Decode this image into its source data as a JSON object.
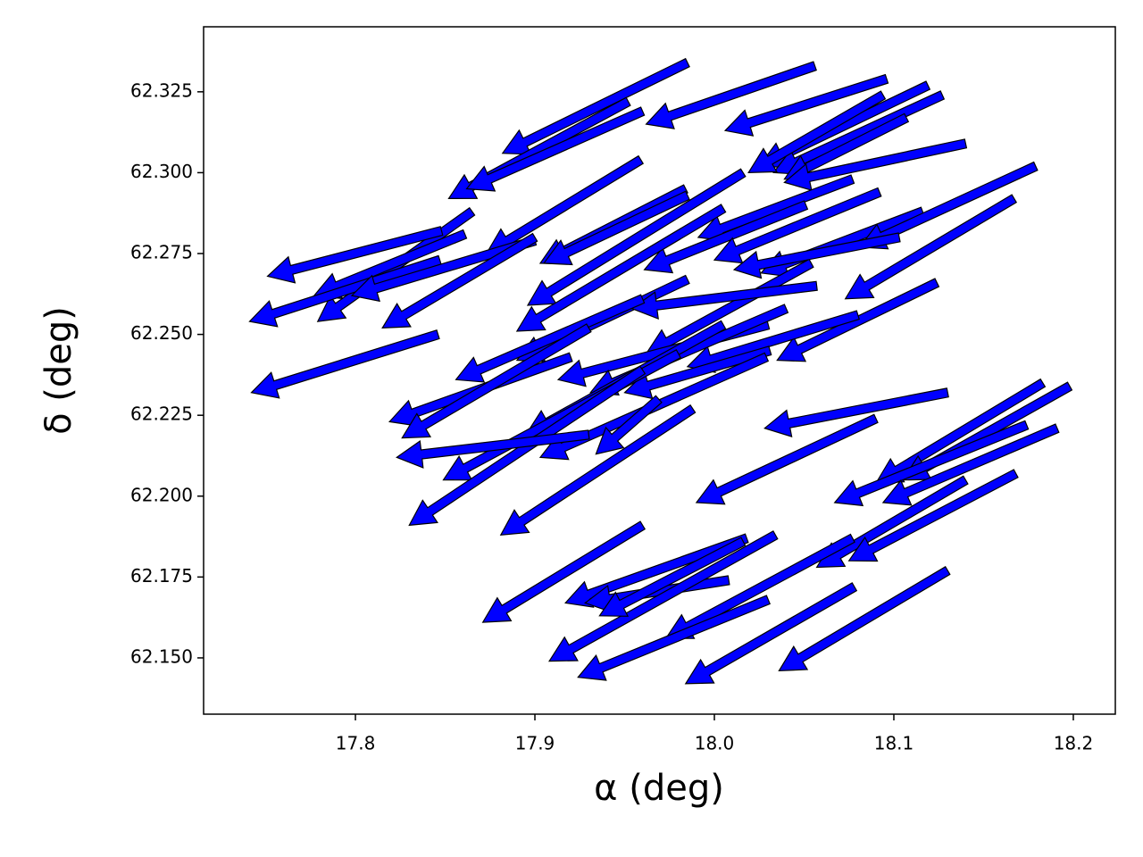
{
  "chart_data": {
    "type": "quiver",
    "xlabel": "α (deg)",
    "ylabel": "δ (deg)",
    "color": "#0000ff",
    "xlim": [
      17.7154,
      18.2234
    ],
    "ylim": [
      62.1326,
      62.3451
    ],
    "xticks": [
      17.8,
      17.9,
      {
        "value": 18,
        "label": "18.0"
      },
      18.1,
      18.2
    ],
    "yticks": [
      {
        "value": 62.15,
        "label": "62.150"
      },
      62.175,
      {
        "value": 62.2,
        "label": "62.200"
      },
      62.225,
      {
        "value": 62.25,
        "label": "62.250"
      },
      62.275,
      {
        "value": 62.3,
        "label": "62.300"
      },
      62.325
    ],
    "x": [
      17.985,
      18.056,
      18.096,
      17.952,
      17.96,
      18.119,
      18.127,
      18.094,
      18.107,
      18.14,
      17.959,
      17.865,
      17.861,
      17.848,
      17.847,
      17.9,
      17.9,
      17.846,
      17.984,
      18.077,
      18.016,
      18.051,
      18.092,
      18.116,
      18.179,
      18.167,
      17.985,
      18.005,
      17.985,
      18.054,
      18.124,
      18.057,
      18.08,
      18.03,
      17.96,
      17.92,
      17.93,
      18.04,
      18.031,
      18.005,
      17.988,
      18.029,
      17.98,
      17.96,
      17.93,
      17.969,
      18.13,
      18.09,
      18.183,
      18.198,
      18.174,
      18.191,
      18.14,
      18.168,
      17.96,
      18.018,
      18.008,
      18.034,
      18.016,
      18.077,
      18.03,
      18.078,
      18.13,
      18.103
    ],
    "y": [
      62.334,
      62.333,
      62.329,
      62.322,
      62.319,
      62.327,
      62.324,
      62.324,
      62.317,
      62.309,
      62.304,
      62.288,
      62.281,
      62.282,
      62.273,
      62.279,
      62.28,
      62.25,
      62.295,
      62.298,
      62.3,
      62.29,
      62.294,
      62.288,
      62.302,
      62.292,
      62.293,
      62.289,
      62.267,
      62.272,
      62.266,
      62.265,
      62.256,
      62.253,
      62.261,
      62.243,
      62.252,
      62.258,
      62.245,
      62.253,
      62.227,
      62.243,
      62.244,
      62.239,
      62.219,
      62.23,
      62.232,
      62.224,
      62.235,
      62.234,
      62.222,
      62.221,
      62.205,
      62.207,
      62.191,
      62.187,
      62.174,
      62.188,
      62.186,
      62.187,
      62.168,
      62.172,
      62.177,
      62.28
    ],
    "x_end": [
      17.882,
      17.962,
      18.006,
      17.852,
      17.862,
      18.025,
      18.033,
      18.019,
      18.039,
      18.039,
      17.873,
      17.779,
      17.777,
      17.751,
      17.741,
      17.798,
      17.815,
      17.742,
      17.903,
      17.991,
      17.896,
      17.961,
      18.0,
      18.026,
      18.081,
      18.073,
      17.905,
      17.89,
      17.89,
      17.962,
      18.035,
      17.954,
      17.985,
      17.913,
      17.856,
      17.819,
      17.826,
      17.931,
      17.95,
      17.895,
      17.881,
      17.903,
      17.849,
      17.83,
      17.823,
      17.934,
      18.028,
      17.99,
      18.09,
      18.105,
      18.067,
      18.094,
      18.057,
      18.075,
      17.871,
      17.917,
      17.928,
      17.908,
      17.936,
      17.973,
      17.924,
      17.984,
      18.036,
      18.011
    ],
    "y_end": [
      62.306,
      62.315,
      62.313,
      62.292,
      62.295,
      62.302,
      62.3,
      62.3,
      62.298,
      62.297,
      62.275,
      62.254,
      62.262,
      62.268,
      62.254,
      62.262,
      62.252,
      62.232,
      62.272,
      62.28,
      62.259,
      62.27,
      62.273,
      62.269,
      62.277,
      62.261,
      62.272,
      62.251,
      62.242,
      62.244,
      62.242,
      62.258,
      62.24,
      62.236,
      62.236,
      62.223,
      62.218,
      62.232,
      62.232,
      62.219,
      62.188,
      62.212,
      62.205,
      62.191,
      62.212,
      62.213,
      62.221,
      62.198,
      62.204,
      62.205,
      62.198,
      62.198,
      62.178,
      62.18,
      62.161,
      62.167,
      62.167,
      62.149,
      62.163,
      62.156,
      62.144,
      62.142,
      62.146,
      62.27
    ]
  }
}
